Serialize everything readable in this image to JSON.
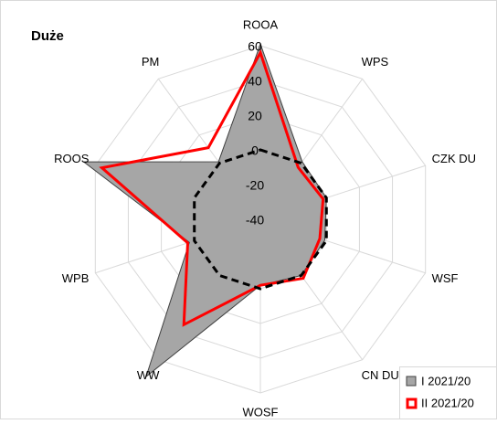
{
  "chart_data": {
    "type": "radar",
    "title": "Duże",
    "categories": [
      "ROOA",
      "WPS",
      "CZK DU",
      "WSF",
      "CN DU",
      "WOSF",
      "WW",
      "WPB",
      "ROOS",
      "PM"
    ],
    "series": [
      {
        "name": "I 2021/20",
        "color": "#a6a6a6",
        "values": [
          61,
          1,
          0,
          -1,
          0,
          -2,
          72,
          3,
          67,
          1
        ]
      },
      {
        "name": "II 2021/20",
        "color": "#ff0000",
        "values": [
          56,
          -3,
          -2,
          -4,
          2,
          -2,
          35,
          4,
          56,
          11
        ]
      },
      {
        "color": "#000000",
        "values": [
          0,
          0,
          0,
          0,
          0,
          0,
          0,
          0,
          0,
          0
        ]
      }
    ],
    "ylim": [
      -40,
      60
    ],
    "yticks": [
      -40,
      -20,
      0,
      20,
      40,
      60
    ],
    "grid": true,
    "legend": "bottom-right"
  }
}
